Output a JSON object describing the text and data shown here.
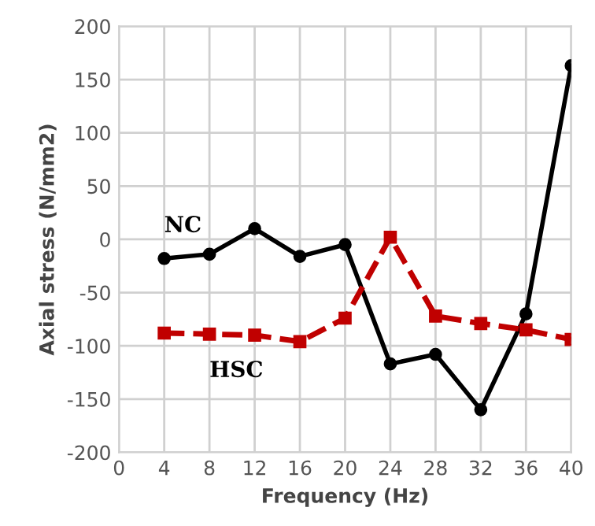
{
  "chart_data": {
    "type": "line",
    "xlabel": "Frequency (Hz)",
    "ylabel": "Axial stress (N/mm2)",
    "x": [
      4,
      8,
      12,
      16,
      20,
      24,
      28,
      32,
      36,
      40
    ],
    "series": [
      {
        "name": "NC",
        "color": "#000000",
        "marker": "circle",
        "line_style": "solid",
        "values": [
          -18,
          -14,
          10,
          -16,
          -5,
          -117,
          -108,
          -160,
          -70,
          163
        ]
      },
      {
        "name": "HSC",
        "color": "#c00000",
        "marker": "square",
        "line_style": "dashed",
        "values": [
          -88,
          -89,
          -90,
          -96,
          -74,
          2,
          -72,
          -79,
          -85,
          -94
        ]
      }
    ],
    "xlim": [
      0,
      40
    ],
    "xticks": [
      0,
      4,
      8,
      12,
      16,
      20,
      24,
      28,
      32,
      36,
      40
    ],
    "ylim": [
      -200,
      200
    ],
    "yticks": [
      -200,
      -150,
      -100,
      -50,
      0,
      50,
      100,
      150,
      200
    ],
    "grid": true,
    "legend": false
  }
}
